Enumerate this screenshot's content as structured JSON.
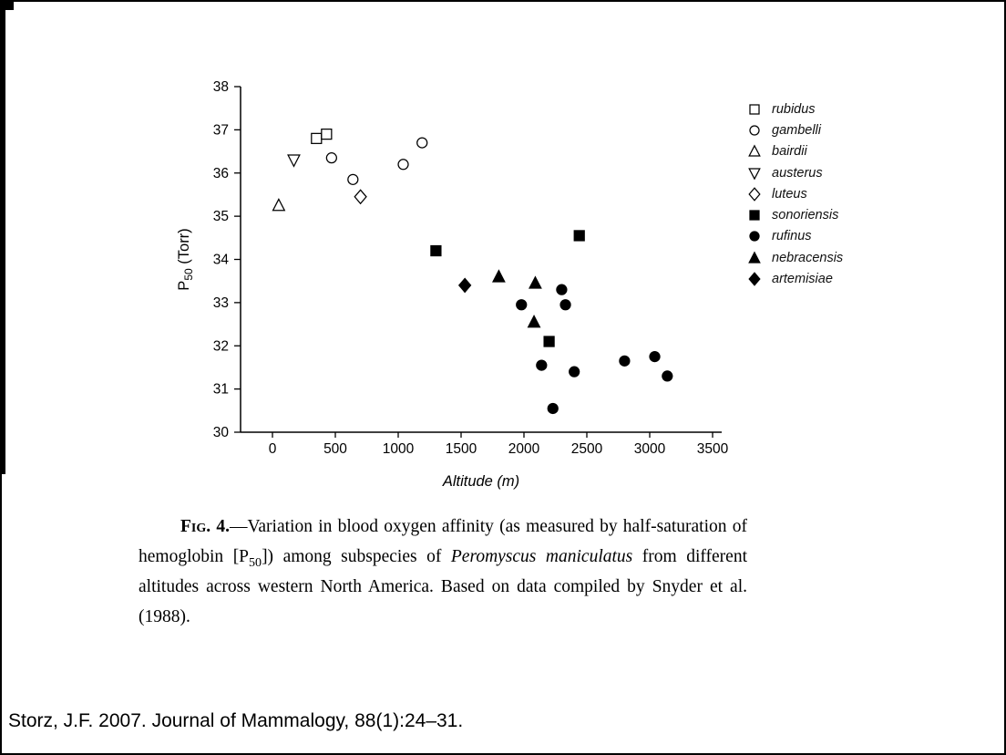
{
  "chart_data": {
    "type": "scatter",
    "title": "",
    "xlabel": "Altitude (m)",
    "ylabel": {
      "pre": "P",
      "sub": "50",
      "post": " (Torr)"
    },
    "xlim": [
      -250,
      3570
    ],
    "ylim": [
      30,
      38
    ],
    "xticks": [
      0,
      500,
      1000,
      1500,
      2000,
      2500,
      3000,
      3500
    ],
    "yticks": [
      30,
      31,
      32,
      33,
      34,
      35,
      36,
      37,
      38
    ],
    "grid": false,
    "legend_position": "right-outside",
    "marker_color": "#000000",
    "background": "#ffffff",
    "series": [
      {
        "name": "rubidus",
        "marker": "square",
        "filled": false,
        "points": [
          [
            350,
            36.8
          ],
          [
            430,
            36.9
          ]
        ]
      },
      {
        "name": "gambelli",
        "marker": "circle",
        "filled": false,
        "points": [
          [
            470,
            36.35
          ],
          [
            640,
            35.85
          ],
          [
            1040,
            36.2
          ],
          [
            1190,
            36.7
          ]
        ]
      },
      {
        "name": "bairdii",
        "marker": "triangle-up",
        "filled": false,
        "points": [
          [
            50,
            35.25
          ]
        ]
      },
      {
        "name": "austerus",
        "marker": "triangle-down",
        "filled": false,
        "points": [
          [
            170,
            36.3
          ]
        ]
      },
      {
        "name": "luteus",
        "marker": "diamond",
        "filled": false,
        "points": [
          [
            700,
            35.45
          ]
        ]
      },
      {
        "name": "sonoriensis",
        "marker": "square",
        "filled": true,
        "points": [
          [
            1300,
            34.2
          ],
          [
            2200,
            32.1
          ],
          [
            2440,
            34.55
          ]
        ]
      },
      {
        "name": "rufinus",
        "marker": "circle",
        "filled": true,
        "points": [
          [
            1980,
            32.95
          ],
          [
            2140,
            31.55
          ],
          [
            2230,
            30.55
          ],
          [
            2300,
            33.3
          ],
          [
            2330,
            32.95
          ],
          [
            2400,
            31.4
          ],
          [
            2800,
            31.65
          ],
          [
            3040,
            31.75
          ],
          [
            3140,
            31.3
          ]
        ]
      },
      {
        "name": "nebracensis",
        "marker": "triangle-up",
        "filled": true,
        "points": [
          [
            1800,
            33.6
          ],
          [
            2080,
            32.55
          ],
          [
            2090,
            33.45
          ]
        ]
      },
      {
        "name": "artemisiae",
        "marker": "diamond",
        "filled": true,
        "points": [
          [
            1530,
            33.4
          ]
        ]
      }
    ]
  },
  "caption": {
    "segments": [
      {
        "t": "Fig. 4.",
        "style": "scb"
      },
      {
        "t": "—Variation in blood oxygen affinity (as measured by half-saturation of hemoglobin [P",
        "style": ""
      },
      {
        "t": "50",
        "style": "sub"
      },
      {
        "t": "]) among subspecies of ",
        "style": ""
      },
      {
        "t": "Peromyscus maniculatus",
        "style": "it"
      },
      {
        "t": " from different altitudes across western North America. Based on data compiled by Snyder et al. (1988).",
        "style": ""
      }
    ]
  },
  "footer": {
    "citation": "Storz, J.F. 2007. Journal of Mammalogy, 88(1):24–31."
  }
}
